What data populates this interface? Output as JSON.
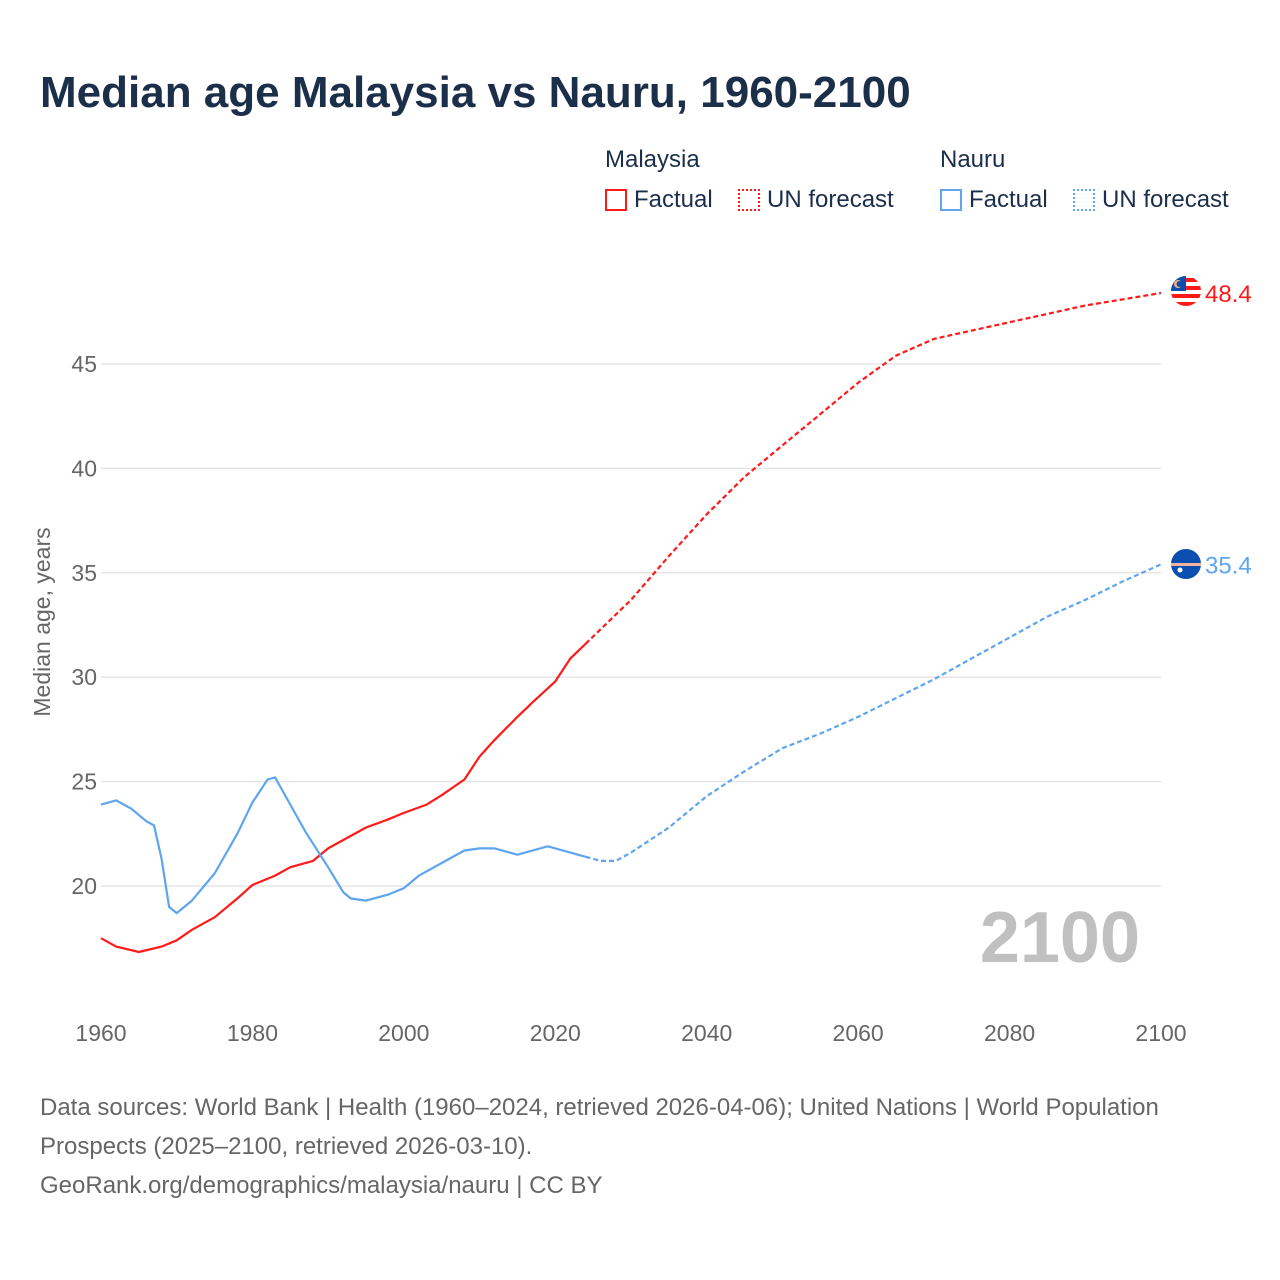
{
  "title": "Median age Malaysia vs Nauru, 1960-2100",
  "legend": {
    "groups": [
      {
        "name": "Malaysia",
        "factual": "Factual",
        "forecast": "UN forecast"
      },
      {
        "name": "Nauru",
        "factual": "Factual",
        "forecast": "UN forecast"
      }
    ]
  },
  "colors": {
    "malaysia": "#ff1a1a",
    "nauru": "#5fa5ee",
    "grid": "#e6e6e6",
    "axis_text": "#666666",
    "year_watermark": "#c0c0c0"
  },
  "year_watermark": "2100",
  "source": {
    "line1": "Data sources: World Bank | Health (1960–2024, retrieved 2026-04-06); United Nations | World Population Prospects (2025–2100, retrieved 2026-03-10).",
    "line2": "GeoRank.org/demographics/malaysia/nauru | CC BY"
  },
  "chart_data": {
    "type": "line",
    "title": "Median age Malaysia vs Nauru, 1960-2100",
    "xlabel": "",
    "ylabel": "Median age, years",
    "xlim": [
      1960,
      2100
    ],
    "ylim": [
      15.2,
      49
    ],
    "xticks": [
      "1960",
      "1980",
      "2000",
      "2020",
      "2040",
      "2060",
      "2080",
      "2100"
    ],
    "yticks": [
      "20",
      "25",
      "30",
      "35",
      "40",
      "45"
    ],
    "grid": true,
    "legend_placement": "top-right",
    "series": [
      {
        "name": "Malaysia",
        "kind": "factual",
        "color": "#ff1a1a",
        "x": [
          1960,
          1962,
          1965,
          1968,
          1970,
          1972,
          1975,
          1978,
          1980,
          1983,
          1985,
          1988,
          1990,
          1995,
          1998,
          2000,
          2003,
          2005,
          2008,
          2010,
          2012,
          2015,
          2017,
          2020,
          2022,
          2024
        ],
        "y": [
          17.5,
          17.1,
          16.84,
          17.1,
          17.4,
          17.9,
          18.5,
          19.4,
          20.05,
          20.5,
          20.9,
          21.2,
          21.8,
          22.8,
          23.2,
          23.5,
          23.9,
          24.35,
          25.1,
          26.2,
          27.0,
          28.1,
          28.8,
          29.8,
          30.9,
          31.6
        ]
      },
      {
        "name": "Malaysia",
        "kind": "UN forecast",
        "color": "#ff1a1a",
        "x": [
          2024,
          2030,
          2035,
          2040,
          2045,
          2050,
          2055,
          2060,
          2065,
          2070,
          2075,
          2080,
          2085,
          2090,
          2095,
          2100
        ],
        "y": [
          31.6,
          33.7,
          35.8,
          37.8,
          39.6,
          41.1,
          42.6,
          44.1,
          45.4,
          46.2,
          46.6,
          47.0,
          47.4,
          47.8,
          48.1,
          48.4
        ],
        "end_label": "48.4"
      },
      {
        "name": "Nauru",
        "kind": "factual",
        "color": "#5fa5ee",
        "x": [
          1960,
          1962,
          1964,
          1966,
          1967,
          1968,
          1969,
          1970,
          1972,
          1975,
          1978,
          1980,
          1982,
          1983,
          1985,
          1987,
          1990,
          1992,
          1993,
          1995,
          1998,
          2000,
          2002,
          2005,
          2008,
          2010,
          2012,
          2015,
          2017,
          2019,
          2022,
          2024
        ],
        "y": [
          23.9,
          24.1,
          23.7,
          23.1,
          22.9,
          21.3,
          19.0,
          18.7,
          19.3,
          20.6,
          22.5,
          24.0,
          25.1,
          25.2,
          23.9,
          22.6,
          20.9,
          19.7,
          19.4,
          19.3,
          19.6,
          19.9,
          20.5,
          21.1,
          21.7,
          21.8,
          21.8,
          21.5,
          21.7,
          21.9,
          21.6,
          21.4
        ]
      },
      {
        "name": "Nauru",
        "kind": "UN forecast",
        "color": "#5fa5ee",
        "x": [
          2024,
          2026,
          2028,
          2030,
          2035,
          2040,
          2045,
          2050,
          2055,
          2060,
          2065,
          2070,
          2075,
          2080,
          2085,
          2090,
          2095,
          2100
        ],
        "y": [
          21.4,
          21.2,
          21.2,
          21.6,
          22.8,
          24.3,
          25.5,
          26.6,
          27.3,
          28.1,
          29.0,
          29.9,
          30.9,
          31.9,
          32.9,
          33.7,
          34.6,
          35.4
        ],
        "end_label": "35.4"
      }
    ]
  }
}
